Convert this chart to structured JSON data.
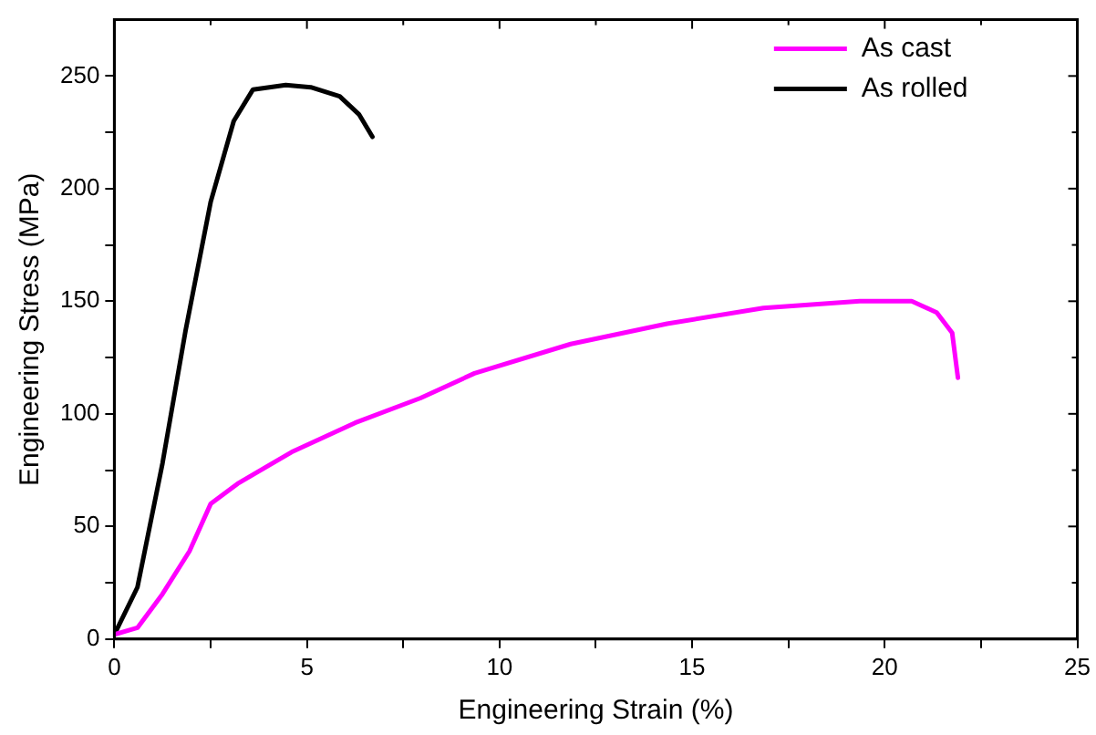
{
  "chart_data": {
    "type": "line",
    "xlabel": "Engineering Strain (%)",
    "ylabel": "Engineering Stress (MPa)",
    "xlim": [
      0,
      25
    ],
    "ylim": [
      0,
      275
    ],
    "xticks": [
      0,
      {
        "value": 2.5,
        "label": null
      },
      5,
      {
        "value": 7.5,
        "label": null
      },
      10,
      {
        "value": 12.5,
        "label": null
      },
      15,
      {
        "value": 17.5,
        "label": null
      },
      20,
      {
        "value": 22.5,
        "label": null
      },
      25
    ],
    "yticks": [
      0,
      {
        "value": 25,
        "label": null
      },
      50,
      {
        "value": 75,
        "label": null
      },
      100,
      {
        "value": 125,
        "label": null
      },
      150,
      {
        "value": 175,
        "label": null
      },
      200,
      {
        "value": 225,
        "label": null
      },
      250
    ],
    "grid": false,
    "legend": "top right",
    "marker": "none",
    "line_style": "solid",
    "series": [
      {
        "name": "As cast",
        "color": "#ff00ff",
        "x": [
          0,
          0.6,
          1.25,
          1.95,
          2.5,
          3.2,
          4.6,
          6.25,
          7.95,
          9.35,
          11.85,
          14.35,
          16.85,
          19.35,
          20.7,
          21.35,
          21.75,
          21.9
        ],
        "values": [
          2,
          5,
          20,
          39,
          60,
          69,
          83,
          96,
          107,
          118,
          131,
          140,
          147,
          150,
          150,
          145,
          136,
          116
        ]
      },
      {
        "name": "As rolled",
        "color": "#000000",
        "x": [
          0,
          0.6,
          1.25,
          1.85,
          2.5,
          3.1,
          3.6,
          4.45,
          5.1,
          5.85,
          6.35,
          6.7
        ],
        "values": [
          2,
          23,
          78,
          137,
          194,
          230,
          244,
          246,
          245,
          241,
          233,
          223
        ]
      }
    ]
  }
}
